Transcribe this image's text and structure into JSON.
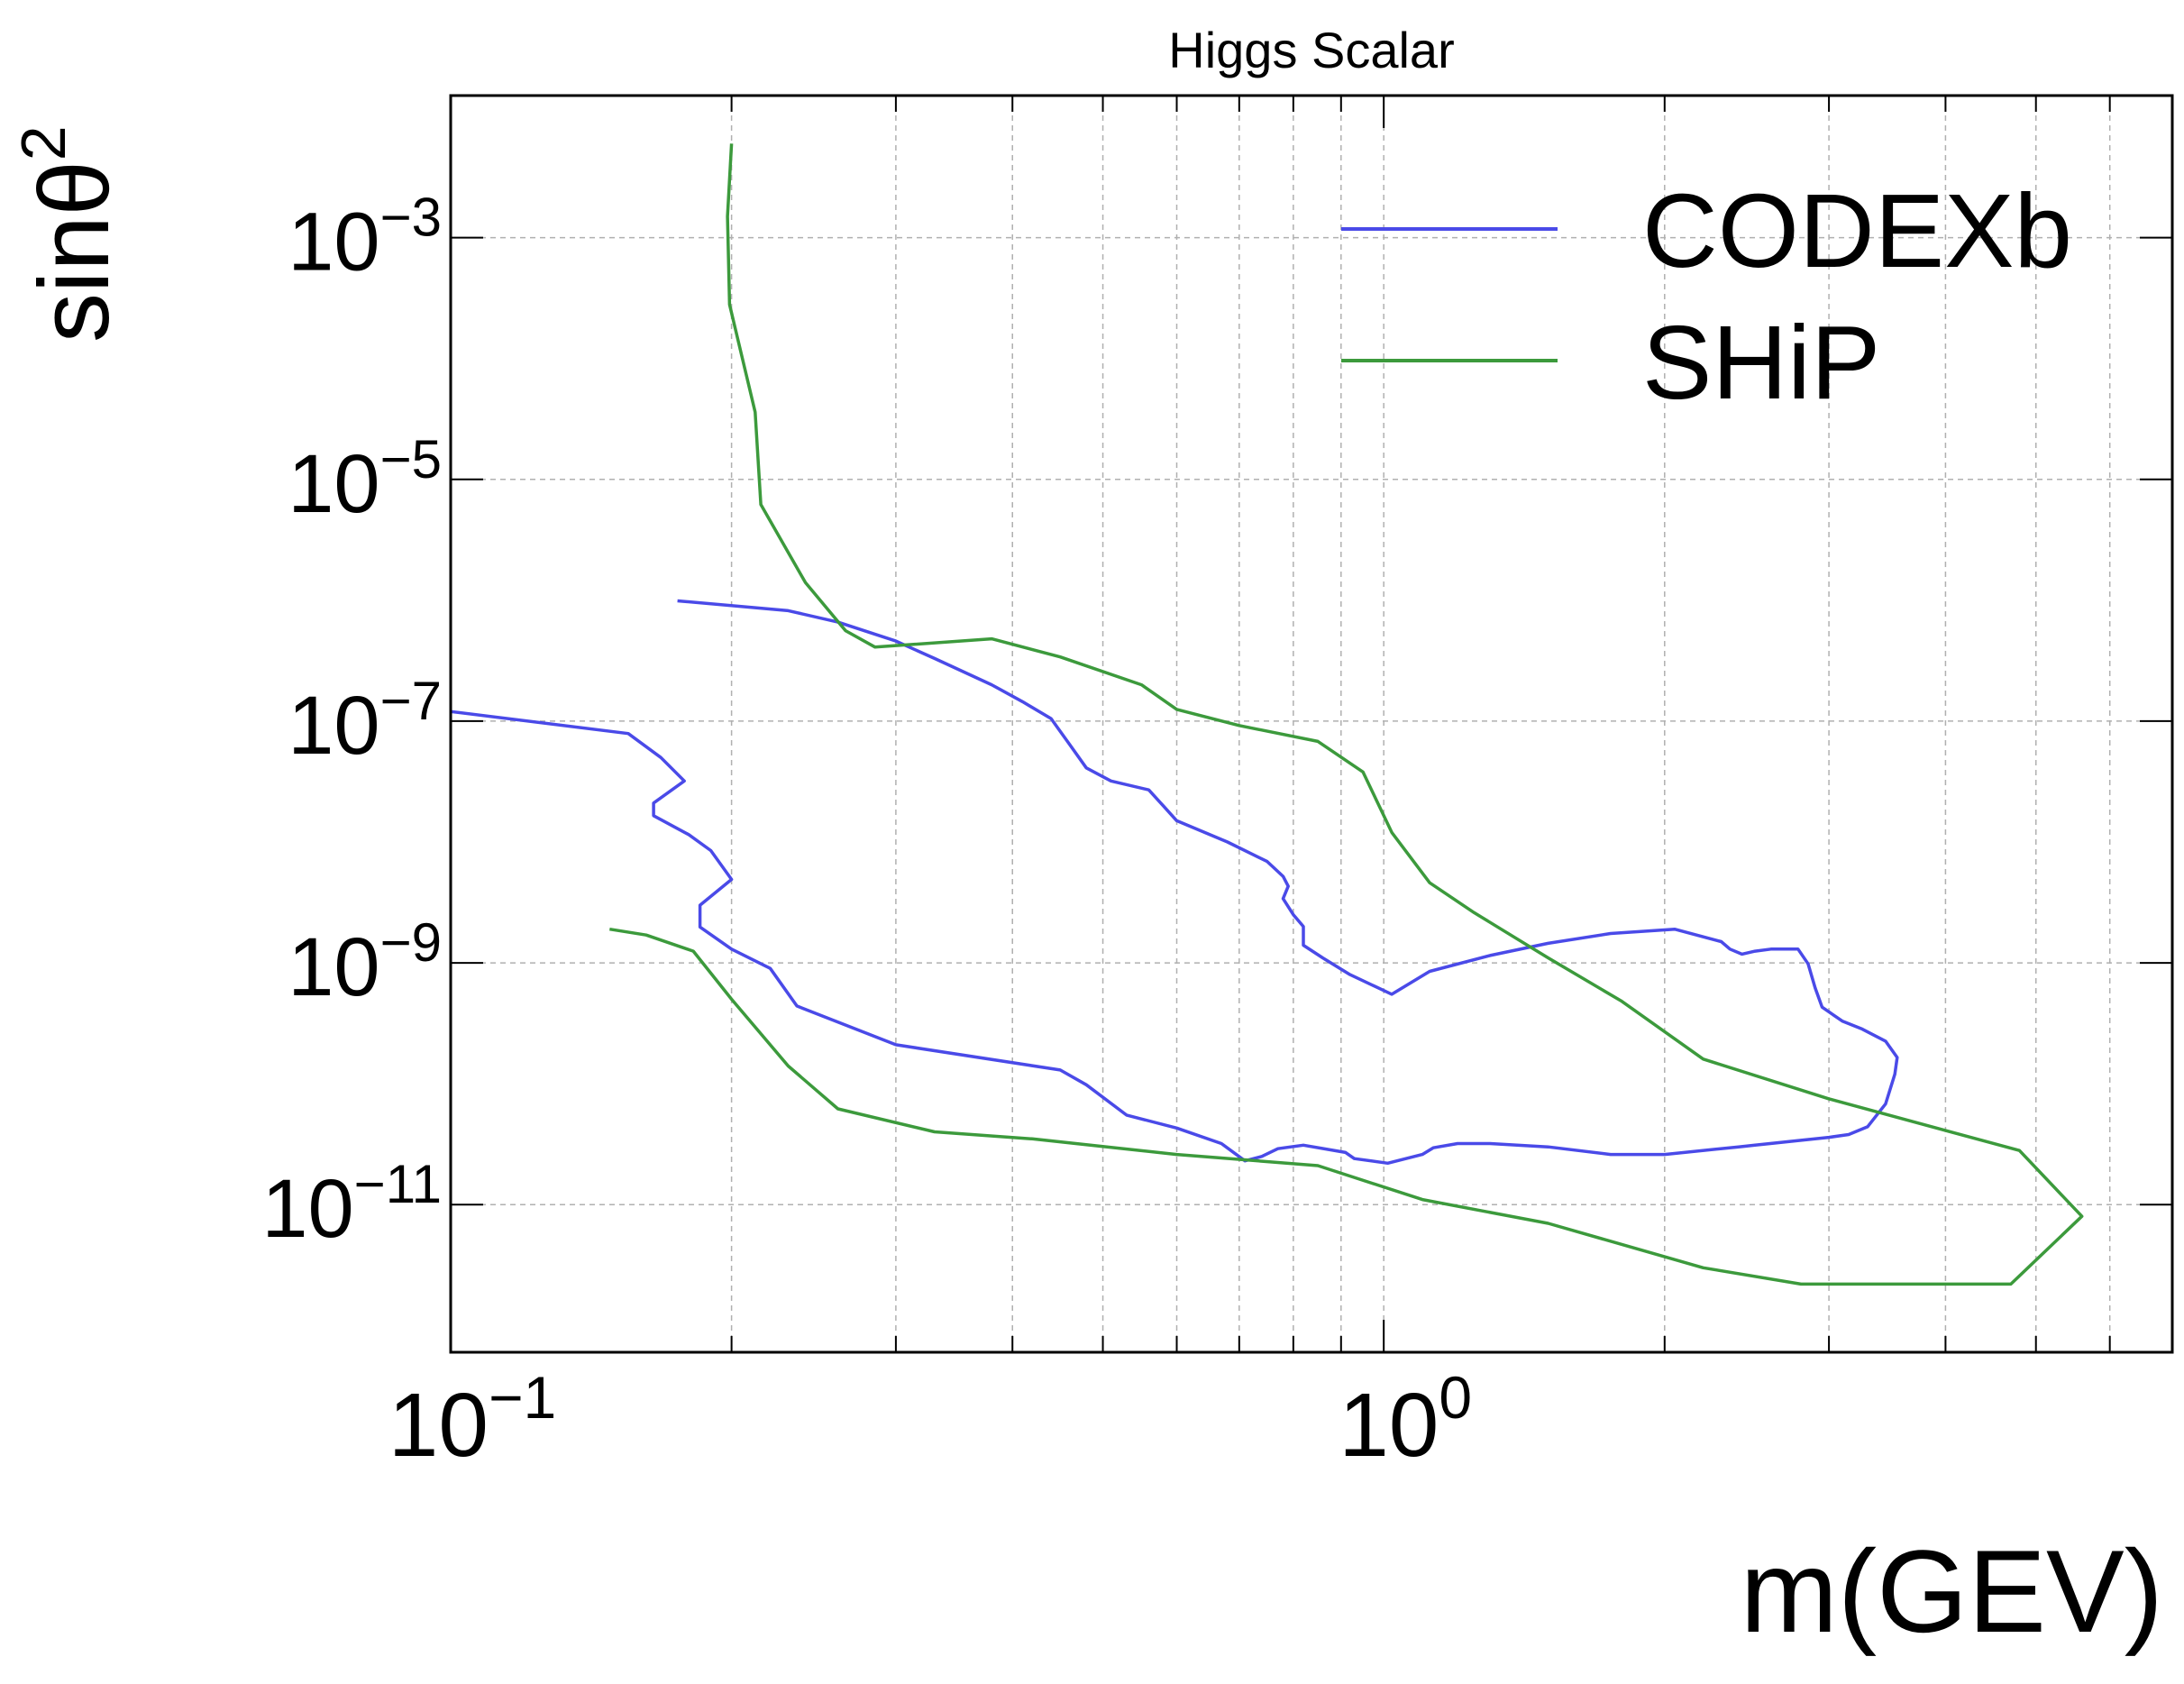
{
  "chart_data": {
    "type": "line",
    "title": "Higgs Scalar",
    "xlabel": "m(GEV)",
    "ylabel": "sinθ",
    "ylabel_sup": "2",
    "x_scale": "log",
    "y_scale": "log",
    "xlim": [
      0.1,
      7.0
    ],
    "ylim": [
      6e-13,
      0.015
    ],
    "grid": true,
    "legend_position": "top-right",
    "x_ticks": [
      {
        "value": 0.1,
        "base": "10",
        "exp": "−1"
      },
      {
        "value": 1.0,
        "base": "10",
        "exp": "0"
      }
    ],
    "y_ticks": [
      {
        "value": 0.001,
        "base": "10",
        "exp": "−3"
      },
      {
        "value": 1e-05,
        "base": "10",
        "exp": "−5"
      },
      {
        "value": 1e-07,
        "base": "10",
        "exp": "−7"
      },
      {
        "value": 1e-09,
        "base": "10",
        "exp": "−9"
      },
      {
        "value": 1e-11,
        "base": "10",
        "exp": "−11"
      }
    ],
    "series": [
      {
        "name": "CODEXb",
        "color": "#4a4ae8",
        "points": [
          [
            0.1,
            1.2e-07
          ],
          [
            0.155,
            7.9e-08
          ],
          [
            0.168,
            5e-08
          ],
          [
            0.178,
            3.2e-08
          ],
          [
            0.165,
            2.1e-08
          ],
          [
            0.165,
            1.65e-08
          ],
          [
            0.18,
            1.15e-08
          ],
          [
            0.19,
            8.5e-09
          ],
          [
            0.2,
            4.9e-09
          ],
          [
            0.185,
            3e-09
          ],
          [
            0.185,
            1.98e-09
          ],
          [
            0.2,
            1.3e-09
          ],
          [
            0.22,
            9e-10
          ],
          [
            0.235,
            4.4e-10
          ],
          [
            0.3,
            2.1e-10
          ],
          [
            0.45,
            1.3e-10
          ],
          [
            0.48,
            9.8e-11
          ],
          [
            0.53,
            5.5e-11
          ],
          [
            0.6,
            4.3e-11
          ],
          [
            0.67,
            3.2e-11
          ],
          [
            0.71,
            2.3e-11
          ],
          [
            0.74,
            2.5e-11
          ],
          [
            0.77,
            2.9e-11
          ],
          [
            0.82,
            3.1e-11
          ],
          [
            0.91,
            2.7e-11
          ],
          [
            0.93,
            2.4e-11
          ],
          [
            1.01,
            2.2e-11
          ],
          [
            1.1,
            2.6e-11
          ],
          [
            1.13,
            2.95e-11
          ],
          [
            1.2,
            3.2e-11
          ],
          [
            1.3,
            3.2e-11
          ],
          [
            1.5,
            3e-11
          ],
          [
            1.75,
            2.6e-11
          ],
          [
            2.0,
            2.6e-11
          ],
          [
            2.4,
            3e-11
          ],
          [
            2.5,
            3.1e-11
          ],
          [
            2.8,
            3.4e-11
          ],
          [
            3.0,
            3.6e-11
          ],
          [
            3.15,
            3.8e-11
          ],
          [
            3.3,
            4.4e-11
          ],
          [
            3.45,
            6.8e-11
          ],
          [
            3.53,
            1.2e-10
          ],
          [
            3.55,
            1.65e-10
          ],
          [
            3.45,
            2.25e-10
          ],
          [
            3.25,
            2.85e-10
          ],
          [
            3.1,
            3.3e-10
          ],
          [
            2.95,
            4.3e-10
          ],
          [
            2.9,
            6.2e-10
          ],
          [
            2.85,
            9.8e-10
          ],
          [
            2.78,
            1.3e-09
          ],
          [
            2.6,
            1.3e-09
          ],
          [
            2.5,
            1.25e-09
          ],
          [
            2.42,
            1.18e-09
          ],
          [
            2.35,
            1.3e-09
          ],
          [
            2.3,
            1.5e-09
          ],
          [
            2.05,
            1.9e-09
          ],
          [
            1.75,
            1.75e-09
          ],
          [
            1.5,
            1.45e-09
          ],
          [
            1.3,
            1.15e-09
          ],
          [
            1.12,
            8.5e-10
          ],
          [
            1.02,
            5.5e-10
          ],
          [
            0.97,
            6.6e-10
          ],
          [
            0.92,
            8e-10
          ],
          [
            0.86,
            1.1e-09
          ],
          [
            0.82,
            1.4e-09
          ],
          [
            0.82,
            2e-09
          ],
          [
            0.8,
            2.5e-09
          ],
          [
            0.78,
            3.4e-09
          ],
          [
            0.79,
            4.3e-09
          ],
          [
            0.78,
            5.2e-09
          ],
          [
            0.75,
            6.9e-09
          ],
          [
            0.68,
            1e-08
          ],
          [
            0.6,
            1.5e-08
          ],
          [
            0.58,
            2e-08
          ],
          [
            0.56,
            2.7e-08
          ],
          [
            0.51,
            3.2e-08
          ],
          [
            0.48,
            4.1e-08
          ],
          [
            0.46,
            6.5e-08
          ],
          [
            0.44,
            1.05e-07
          ],
          [
            0.41,
            1.45e-07
          ],
          [
            0.38,
            2e-07
          ],
          [
            0.33,
            3.3e-07
          ],
          [
            0.3,
            4.6e-07
          ],
          [
            0.26,
            6.6e-07
          ],
          [
            0.23,
            8.2e-07
          ],
          [
            0.175,
            9.9e-07
          ]
        ]
      },
      {
        "name": "SHiP",
        "color": "#3c9a3c",
        "points": [
          [
            0.2,
            0.006
          ],
          [
            0.198,
            0.0015
          ],
          [
            0.199,
            0.00028
          ],
          [
            0.212,
            3.6e-05
          ],
          [
            0.215,
            6.2e-06
          ],
          [
            0.24,
            1.4e-06
          ],
          [
            0.265,
            5.6e-07
          ],
          [
            0.285,
            4.1e-07
          ],
          [
            0.38,
            4.8e-07
          ],
          [
            0.45,
            3.4e-07
          ],
          [
            0.55,
            2e-07
          ],
          [
            0.6,
            1.25e-07
          ],
          [
            0.7,
            9.2e-08
          ],
          [
            0.85,
            6.8e-08
          ],
          [
            0.95,
            3.8e-08
          ],
          [
            1.02,
            1.2e-08
          ],
          [
            1.12,
            4.6e-09
          ],
          [
            1.25,
            2.6e-09
          ],
          [
            1.5,
            1.1e-09
          ],
          [
            1.8,
            4.8e-10
          ],
          [
            2.2,
            1.6e-10
          ],
          [
            3.0,
            7.5e-11
          ],
          [
            4.8,
            2.8e-11
          ],
          [
            5.6,
            8e-12
          ],
          [
            4.7,
            2.2e-12
          ],
          [
            2.8,
            2.2e-12
          ],
          [
            2.2,
            3e-12
          ],
          [
            1.5,
            7e-12
          ],
          [
            1.1,
            1.1e-11
          ],
          [
            0.85,
            2.1e-11
          ],
          [
            0.6,
            2.6e-11
          ],
          [
            0.42,
            3.5e-11
          ],
          [
            0.33,
            4e-11
          ],
          [
            0.26,
            6.2e-11
          ],
          [
            0.23,
            1.4e-10
          ],
          [
            0.2,
            5e-10
          ],
          [
            0.182,
            1.25e-09
          ],
          [
            0.162,
            1.7e-09
          ],
          [
            0.148,
            1.9e-09
          ]
        ]
      }
    ]
  }
}
